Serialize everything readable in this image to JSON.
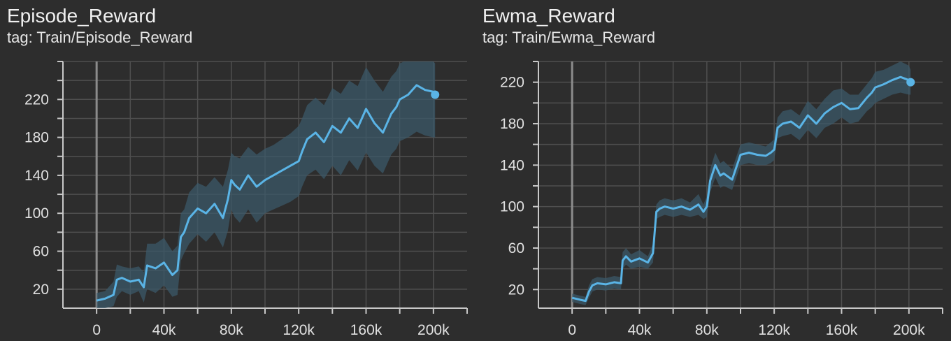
{
  "charts": [
    {
      "title": "Episode_Reward",
      "tag": "tag: Train/Episode_Reward"
    },
    {
      "title": "Ewma_Reward",
      "tag": "tag: Train/Ewma_Reward"
    }
  ],
  "colors": {
    "background": "#2d2d2d",
    "grid": "#4f4f4f",
    "axis": "#c8c8c8",
    "zero_line": "#8c8c8c",
    "series": "#5ab4e6",
    "band": "#3b5868"
  },
  "chart_data": [
    {
      "type": "line",
      "title": "Episode_Reward",
      "subtitle": "tag: Train/Episode_Reward",
      "xlabel": "",
      "ylabel": "",
      "xlim": [
        -20000,
        220000
      ],
      "ylim": [
        0,
        260
      ],
      "xticks": [
        0,
        40000,
        80000,
        120000,
        160000,
        200000
      ],
      "xtick_labels": [
        "0",
        "40k",
        "80k",
        "120k",
        "160k",
        "200k"
      ],
      "yticks": [
        20,
        60,
        100,
        140,
        180,
        220
      ],
      "ytick_labels": [
        "20",
        "60",
        "100",
        "140",
        "180",
        "220"
      ],
      "grid": true,
      "series": [
        {
          "x": [
            0,
            5000,
            10000,
            12000,
            15000,
            20000,
            25000,
            28000,
            30000,
            35000,
            40000,
            45000,
            48000,
            50000,
            52000,
            55000,
            60000,
            65000,
            70000,
            75000,
            78000,
            80000,
            82000,
            85000,
            90000,
            95000,
            100000,
            105000,
            110000,
            115000,
            120000,
            122000,
            125000,
            130000,
            135000,
            140000,
            145000,
            150000,
            155000,
            160000,
            165000,
            170000,
            175000,
            178000,
            180000,
            185000,
            190000,
            195000,
            200000,
            201000
          ],
          "y": [
            8,
            10,
            14,
            30,
            32,
            28,
            30,
            22,
            45,
            42,
            48,
            35,
            40,
            75,
            80,
            95,
            105,
            100,
            110,
            95,
            115,
            135,
            130,
            125,
            140,
            128,
            135,
            140,
            145,
            150,
            155,
            165,
            178,
            185,
            175,
            192,
            185,
            200,
            190,
            210,
            195,
            185,
            205,
            212,
            220,
            225,
            235,
            230,
            228,
            225
          ],
          "range_low": [
            0,
            0,
            2,
            12,
            18,
            14,
            18,
            6,
            20,
            16,
            24,
            12,
            14,
            50,
            58,
            68,
            78,
            70,
            80,
            64,
            82,
            104,
            96,
            90,
            104,
            90,
            100,
            104,
            108,
            112,
            118,
            128,
            140,
            146,
            136,
            150,
            140,
            156,
            145,
            164,
            150,
            142,
            162,
            168,
            176,
            180,
            186,
            182,
            180,
            180
          ],
          "range_high": [
            16,
            18,
            28,
            46,
            44,
            42,
            44,
            38,
            68,
            68,
            74,
            60,
            66,
            100,
            104,
            122,
            132,
            128,
            138,
            128,
            146,
            164,
            160,
            158,
            170,
            162,
            168,
            172,
            178,
            184,
            192,
            200,
            214,
            222,
            214,
            232,
            226,
            240,
            234,
            254,
            240,
            228,
            244,
            250,
            258,
            262,
            266,
            262,
            260,
            258
          ]
        }
      ]
    },
    {
      "type": "line",
      "title": "Ewma_Reward",
      "subtitle": "tag: Train/Ewma_Reward",
      "xlabel": "",
      "ylabel": "",
      "xlim": [
        -20000,
        220000
      ],
      "ylim": [
        2,
        240
      ],
      "xticks": [
        0,
        40000,
        80000,
        120000,
        160000,
        200000
      ],
      "xtick_labels": [
        "0",
        "40k",
        "80k",
        "120k",
        "160k",
        "200k"
      ],
      "yticks": [
        20,
        60,
        100,
        140,
        180,
        220
      ],
      "ytick_labels": [
        "20",
        "60",
        "100",
        "140",
        "180",
        "220"
      ],
      "grid": true,
      "series": [
        {
          "x": [
            0,
            5000,
            8000,
            10000,
            12000,
            15000,
            20000,
            25000,
            29000,
            30000,
            32000,
            35000,
            40000,
            45000,
            48000,
            50000,
            52000,
            55000,
            60000,
            65000,
            70000,
            75000,
            78000,
            80000,
            82000,
            85000,
            88000,
            90000,
            95000,
            100000,
            105000,
            110000,
            115000,
            118000,
            120000,
            122000,
            125000,
            130000,
            135000,
            140000,
            145000,
            150000,
            155000,
            160000,
            165000,
            170000,
            175000,
            178000,
            180000,
            185000,
            190000,
            195000,
            200000,
            201000
          ],
          "y": [
            12,
            10,
            9,
            18,
            24,
            26,
            25,
            27,
            26,
            48,
            52,
            47,
            50,
            46,
            55,
            95,
            98,
            100,
            98,
            100,
            97,
            102,
            95,
            100,
            125,
            140,
            130,
            132,
            126,
            150,
            152,
            150,
            149,
            152,
            155,
            176,
            180,
            182,
            176,
            188,
            180,
            190,
            196,
            200,
            194,
            195,
            205,
            210,
            215,
            218,
            222,
            225,
            222,
            220
          ],
          "range_low": [
            8,
            6,
            5,
            12,
            18,
            20,
            19,
            21,
            20,
            40,
            44,
            40,
            42,
            40,
            46,
            88,
            90,
            92,
            90,
            92,
            90,
            92,
            88,
            90,
            114,
            128,
            118,
            120,
            116,
            140,
            142,
            140,
            140,
            142,
            145,
            166,
            168,
            170,
            164,
            174,
            166,
            176,
            180,
            186,
            180,
            182,
            192,
            196,
            200,
            204,
            208,
            210,
            208,
            208
          ],
          "range_high": [
            16,
            14,
            13,
            24,
            30,
            32,
            31,
            33,
            32,
            56,
            60,
            54,
            58,
            52,
            64,
            102,
            106,
            108,
            106,
            108,
            104,
            112,
            102,
            110,
            136,
            152,
            142,
            144,
            136,
            160,
            162,
            160,
            158,
            162,
            165,
            186,
            192,
            194,
            188,
            202,
            194,
            204,
            212,
            214,
            208,
            208,
            218,
            224,
            230,
            232,
            236,
            240,
            236,
            232
          ]
        }
      ]
    }
  ]
}
